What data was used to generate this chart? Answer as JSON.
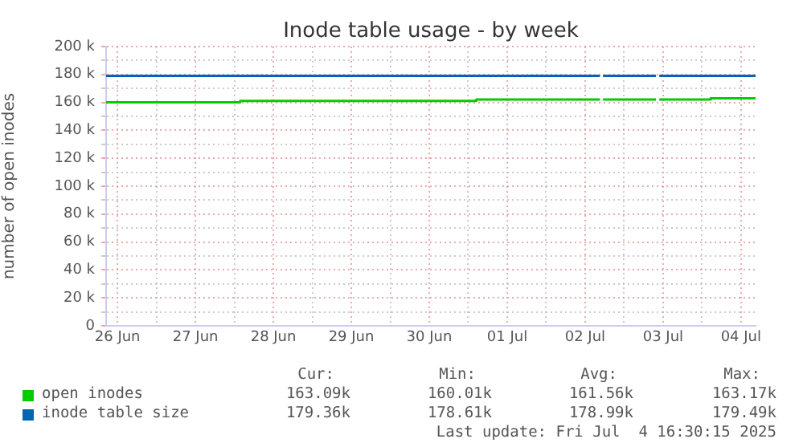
{
  "chart_data": {
    "type": "line",
    "title": "Inode table usage - by week",
    "ylabel": "number of open inodes",
    "xlim": [
      "2025-06-26T08:30",
      "2025-07-04T16:30"
    ],
    "xticks": [
      {
        "value": "2025-06-26T12:00",
        "label": "26 Jun"
      },
      {
        "value": "2025-06-27T00:00",
        "label": null
      },
      {
        "value": "2025-06-27T12:00",
        "label": "27 Jun"
      },
      {
        "value": "2025-06-28T00:00",
        "label": null
      },
      {
        "value": "2025-06-28T12:00",
        "label": "28 Jun"
      },
      {
        "value": "2025-06-29T00:00",
        "label": null
      },
      {
        "value": "2025-06-29T12:00",
        "label": "29 Jun"
      },
      {
        "value": "2025-06-30T00:00",
        "label": null
      },
      {
        "value": "2025-06-30T12:00",
        "label": "30 Jun"
      },
      {
        "value": "2025-07-01T00:00",
        "label": null
      },
      {
        "value": "2025-07-01T12:00",
        "label": "01 Jul"
      },
      {
        "value": "2025-07-02T00:00",
        "label": null
      },
      {
        "value": "2025-07-02T12:00",
        "label": "02 Jul"
      },
      {
        "value": "2025-07-03T00:00",
        "label": null
      },
      {
        "value": "2025-07-03T12:00",
        "label": "03 Jul"
      },
      {
        "value": "2025-07-04T00:00",
        "label": null
      },
      {
        "value": "2025-07-04T12:00",
        "label": "04 Jul"
      }
    ],
    "ylim": [
      0,
      200000
    ],
    "yticks": [
      {
        "value": 0,
        "label": "0"
      },
      {
        "value": 10000,
        "label": null
      },
      {
        "value": 20000,
        "label": "20 k"
      },
      {
        "value": 30000,
        "label": null
      },
      {
        "value": 40000,
        "label": "40 k"
      },
      {
        "value": 50000,
        "label": null
      },
      {
        "value": 60000,
        "label": "60 k"
      },
      {
        "value": 70000,
        "label": null
      },
      {
        "value": 80000,
        "label": "80 k"
      },
      {
        "value": 90000,
        "label": null
      },
      {
        "value": 100000,
        "label": "100 k"
      },
      {
        "value": 110000,
        "label": null
      },
      {
        "value": 120000,
        "label": "120 k"
      },
      {
        "value": 130000,
        "label": null
      },
      {
        "value": 140000,
        "label": "140 k"
      },
      {
        "value": 150000,
        "label": null
      },
      {
        "value": 160000,
        "label": "160 k"
      },
      {
        "value": 170000,
        "label": null
      },
      {
        "value": 180000,
        "label": "180 k"
      },
      {
        "value": 190000,
        "label": null
      },
      {
        "value": 200000,
        "label": "200 k"
      }
    ],
    "grid": true,
    "legend": "bottom left",
    "marker": "none",
    "line_style": "solid",
    "series": [
      {
        "name": "open inodes",
        "color": "#00cc00",
        "x": [
          "2025-06-26T08:30",
          "2025-06-28T01:45",
          "2025-06-28T01:45",
          "2025-07-01T02:30",
          "2025-07-01T02:30",
          "2025-07-02T16:35",
          "2025-07-02T17:00",
          "2025-07-02T17:30",
          "2025-07-03T09:50",
          "2025-07-03T10:20",
          "2025-07-03T10:50",
          "2025-07-04T02:40",
          "2025-07-04T02:40",
          "2025-07-04T16:30"
        ],
        "values": [
          160000,
          160000,
          161000,
          161000,
          162000,
          162000,
          null,
          162000,
          162000,
          null,
          162000,
          162000,
          163000,
          163000
        ]
      },
      {
        "name": "inode table size",
        "color": "#0066b3",
        "x": [
          "2025-06-26T08:30",
          "2025-07-02T16:35",
          "2025-07-02T17:00",
          "2025-07-02T17:30",
          "2025-07-03T09:50",
          "2025-07-03T10:20",
          "2025-07-03T10:50",
          "2025-07-04T16:30"
        ],
        "values": [
          179000,
          179000,
          null,
          179000,
          179000,
          null,
          179000,
          179000
        ]
      }
    ],
    "annotations": [
      "Cur:",
      "Min:",
      "Avg:",
      "Max:",
      "163.09k",
      "160.01k",
      "161.56k",
      "163.17k",
      "179.36k",
      "178.61k",
      "178.99k",
      "179.49k",
      "Last update: Fri Jul  4 16:30:15 2025"
    ]
  }
}
